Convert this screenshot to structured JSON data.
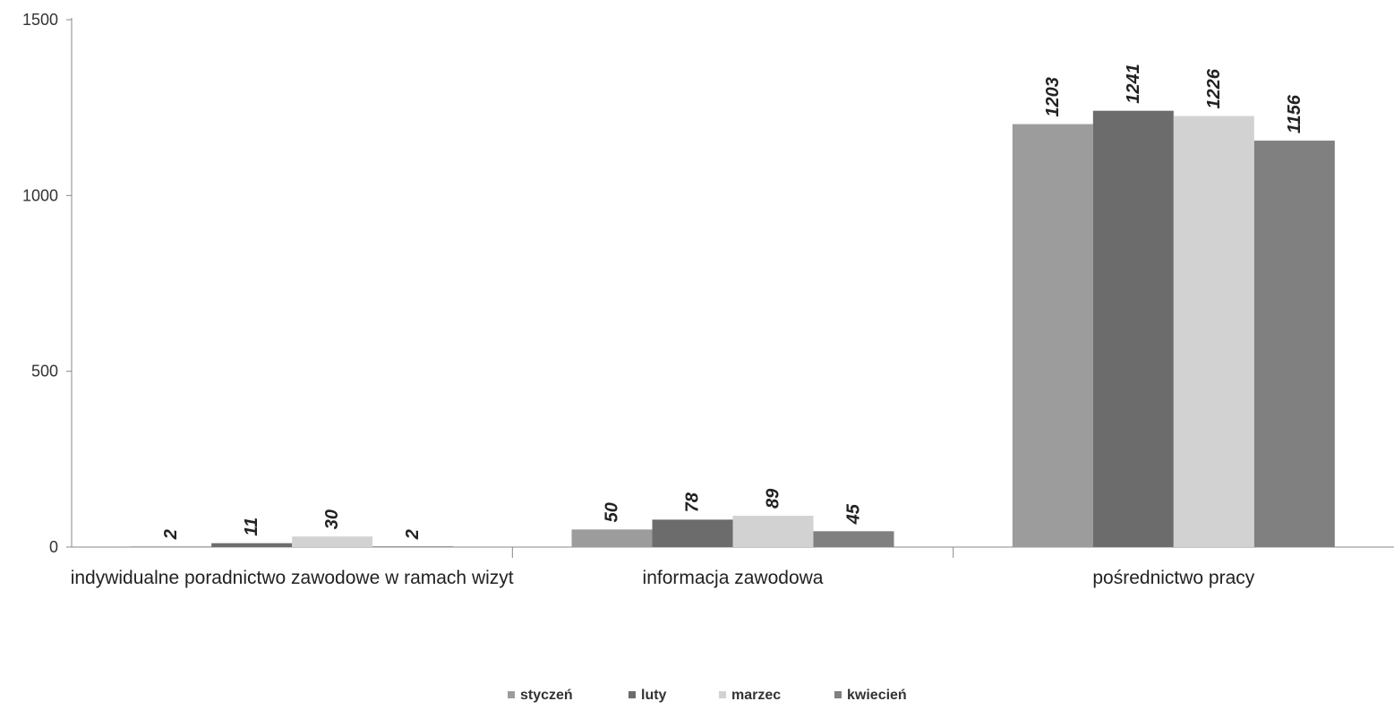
{
  "chart_data": {
    "type": "bar",
    "title": "",
    "xlabel": "",
    "ylabel": "",
    "categories": [
      "indywidualne poradnictwo zawodowe w ramach wizyt",
      "informacja zawodowa",
      "pośrednictwo pracy"
    ],
    "series": [
      {
        "name": "styczeń",
        "color": "#9c9c9c",
        "values": [
          2,
          50,
          1203
        ]
      },
      {
        "name": "luty",
        "color": "#6c6c6c",
        "values": [
          11,
          78,
          1241
        ]
      },
      {
        "name": "marzec",
        "color": "#d2d2d2",
        "values": [
          30,
          89,
          1226
        ]
      },
      {
        "name": "kwiecień",
        "color": "#808080",
        "values": [
          2,
          45,
          1156
        ]
      }
    ],
    "ylim": [
      0,
      1500
    ],
    "yticks": [
      "0",
      "500",
      "1000",
      "1500"
    ],
    "grid": false,
    "legend_position": "bottom-center",
    "data_labels": true,
    "data_label_rotation": "vertical"
  }
}
